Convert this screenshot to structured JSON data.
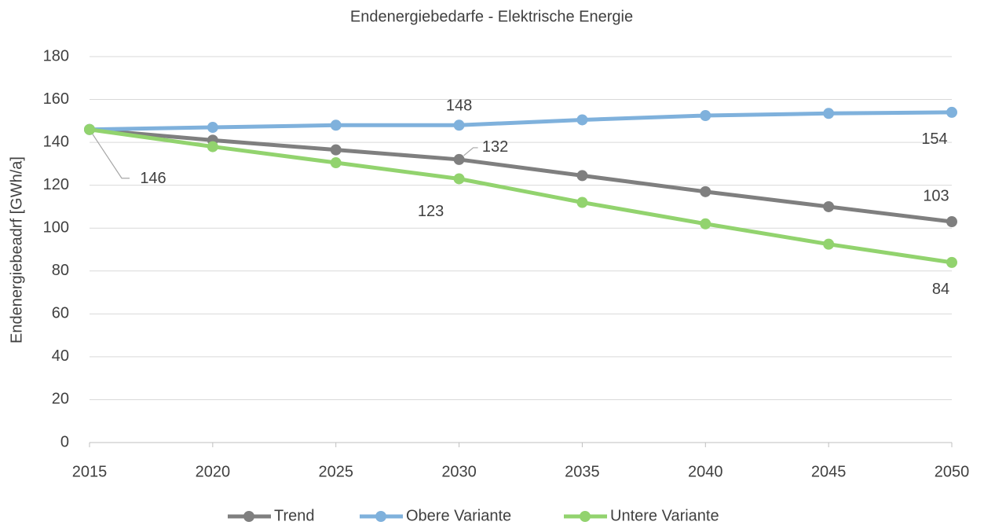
{
  "chart_data": {
    "type": "line",
    "title": "Endenergiebedarfe - Elektrische Energie",
    "y_label": "Endenergiebeadrf [GWh/a]",
    "x": [
      2015,
      2020,
      2025,
      2030,
      2035,
      2040,
      2045,
      2050
    ],
    "xlim": [
      2015,
      2050
    ],
    "xticks": [
      2015,
      2020,
      2025,
      2030,
      2035,
      2040,
      2045,
      2050
    ],
    "ylim": [
      0,
      180
    ],
    "yticks": [
      0,
      20,
      40,
      60,
      80,
      100,
      120,
      140,
      160,
      180
    ],
    "grid": true,
    "legend": "bottom",
    "series": [
      {
        "name": "Trend",
        "color": "#7f7f7f",
        "values": [
          146,
          141,
          136.5,
          132,
          124.5,
          117,
          110,
          103
        ],
        "value_labels": [
          "146",
          null,
          null,
          "132",
          null,
          null,
          null,
          "103"
        ]
      },
      {
        "name": "Obere Variante",
        "color": "#7fb1dc",
        "values": [
          146,
          147,
          148,
          148,
          150.5,
          152.5,
          153.5,
          154
        ],
        "value_labels": [
          null,
          null,
          null,
          "148",
          null,
          null,
          null,
          "154"
        ]
      },
      {
        "name": "Untere Variante",
        "color": "#92d36e",
        "values": [
          146,
          138,
          130.5,
          123,
          112,
          102,
          92.5,
          84
        ],
        "value_labels": [
          null,
          null,
          null,
          "123",
          null,
          null,
          null,
          "84"
        ]
      }
    ]
  }
}
